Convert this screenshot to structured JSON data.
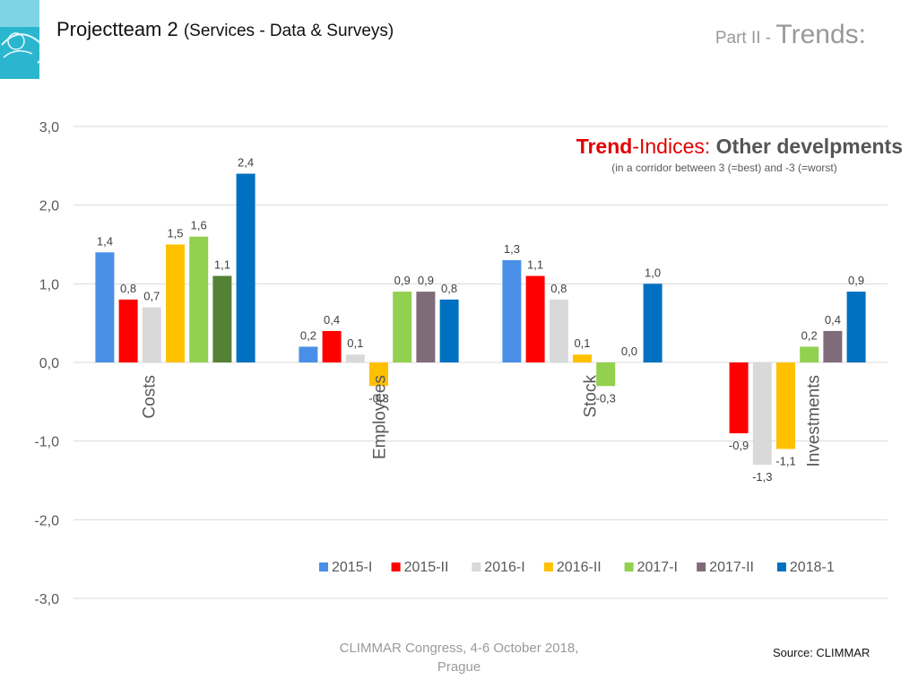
{
  "header": {
    "title": "Projectteam 2",
    "subtitle": "(Services - Data & Surveys)",
    "part_prefix": "Part II - ",
    "part_title": "Trends:"
  },
  "chart_title": {
    "part1": "Trend",
    "part2": "-Indices: ",
    "part3": "Other develpments",
    "subtitle": "(in a corridor between 3 (=best) and -3 (=worst)"
  },
  "footer": {
    "line1": "CLIMMAR Congress, 4-6 October 2018,",
    "line2": "Prague",
    "source": "Source: CLIMMAR"
  },
  "colors": {
    "title_accent": "#e20000",
    "title_gray": "#555555",
    "grid": "#d9d9d9",
    "axis_text": "#595959"
  },
  "chart_data": {
    "type": "bar",
    "categories": [
      "Costs",
      "Employees",
      "Stock",
      "Investments"
    ],
    "series": [
      {
        "name": "2015-I",
        "color": "#4a8fe7",
        "values": [
          1.4,
          0.2,
          1.3,
          null
        ]
      },
      {
        "name": "2015-II",
        "color": "#ff0000",
        "values": [
          0.8,
          0.4,
          1.1,
          -0.9
        ]
      },
      {
        "name": "2016-I",
        "color": "#d9d9d9",
        "values": [
          0.7,
          0.1,
          0.8,
          -1.3
        ]
      },
      {
        "name": "2016-II",
        "color": "#ffc000",
        "values": [
          1.5,
          -0.3,
          0.1,
          -1.1
        ]
      },
      {
        "name": "2017-I",
        "color": "#92d050",
        "values": [
          1.6,
          0.9,
          -0.3,
          0.2
        ]
      },
      {
        "name": "2017-II",
        "color": "#7f6b7a",
        "values": [
          1.1,
          0.9,
          0.0,
          0.4
        ]
      },
      {
        "name": "2018-1",
        "color": "#0070c0",
        "values": [
          2.4,
          0.8,
          1.0,
          0.9
        ]
      }
    ],
    "costs_2017_II_color": "#548235",
    "ylim": [
      -3,
      3
    ],
    "yticks": [
      "3,0",
      "2,0",
      "1,0",
      "0,0",
      "-1,0",
      "-2,0",
      "-3,0"
    ],
    "data_labels": [
      [
        "1,4",
        "0,8",
        "0,7",
        "1,5",
        "1,6",
        "1,1",
        "2,4"
      ],
      [
        "0,2",
        "0,4",
        "0,1",
        "-0,3",
        "0,9",
        "0,9",
        "0,8"
      ],
      [
        "1,3",
        "1,1",
        "0,8",
        "0,1",
        "-0,3",
        "0,0",
        "1,0"
      ],
      [
        "",
        "-0,9",
        "-1,3",
        "-1,1",
        "0,2",
        "0,4",
        "0,9"
      ]
    ],
    "grid": true,
    "legend_position": "bottom"
  }
}
